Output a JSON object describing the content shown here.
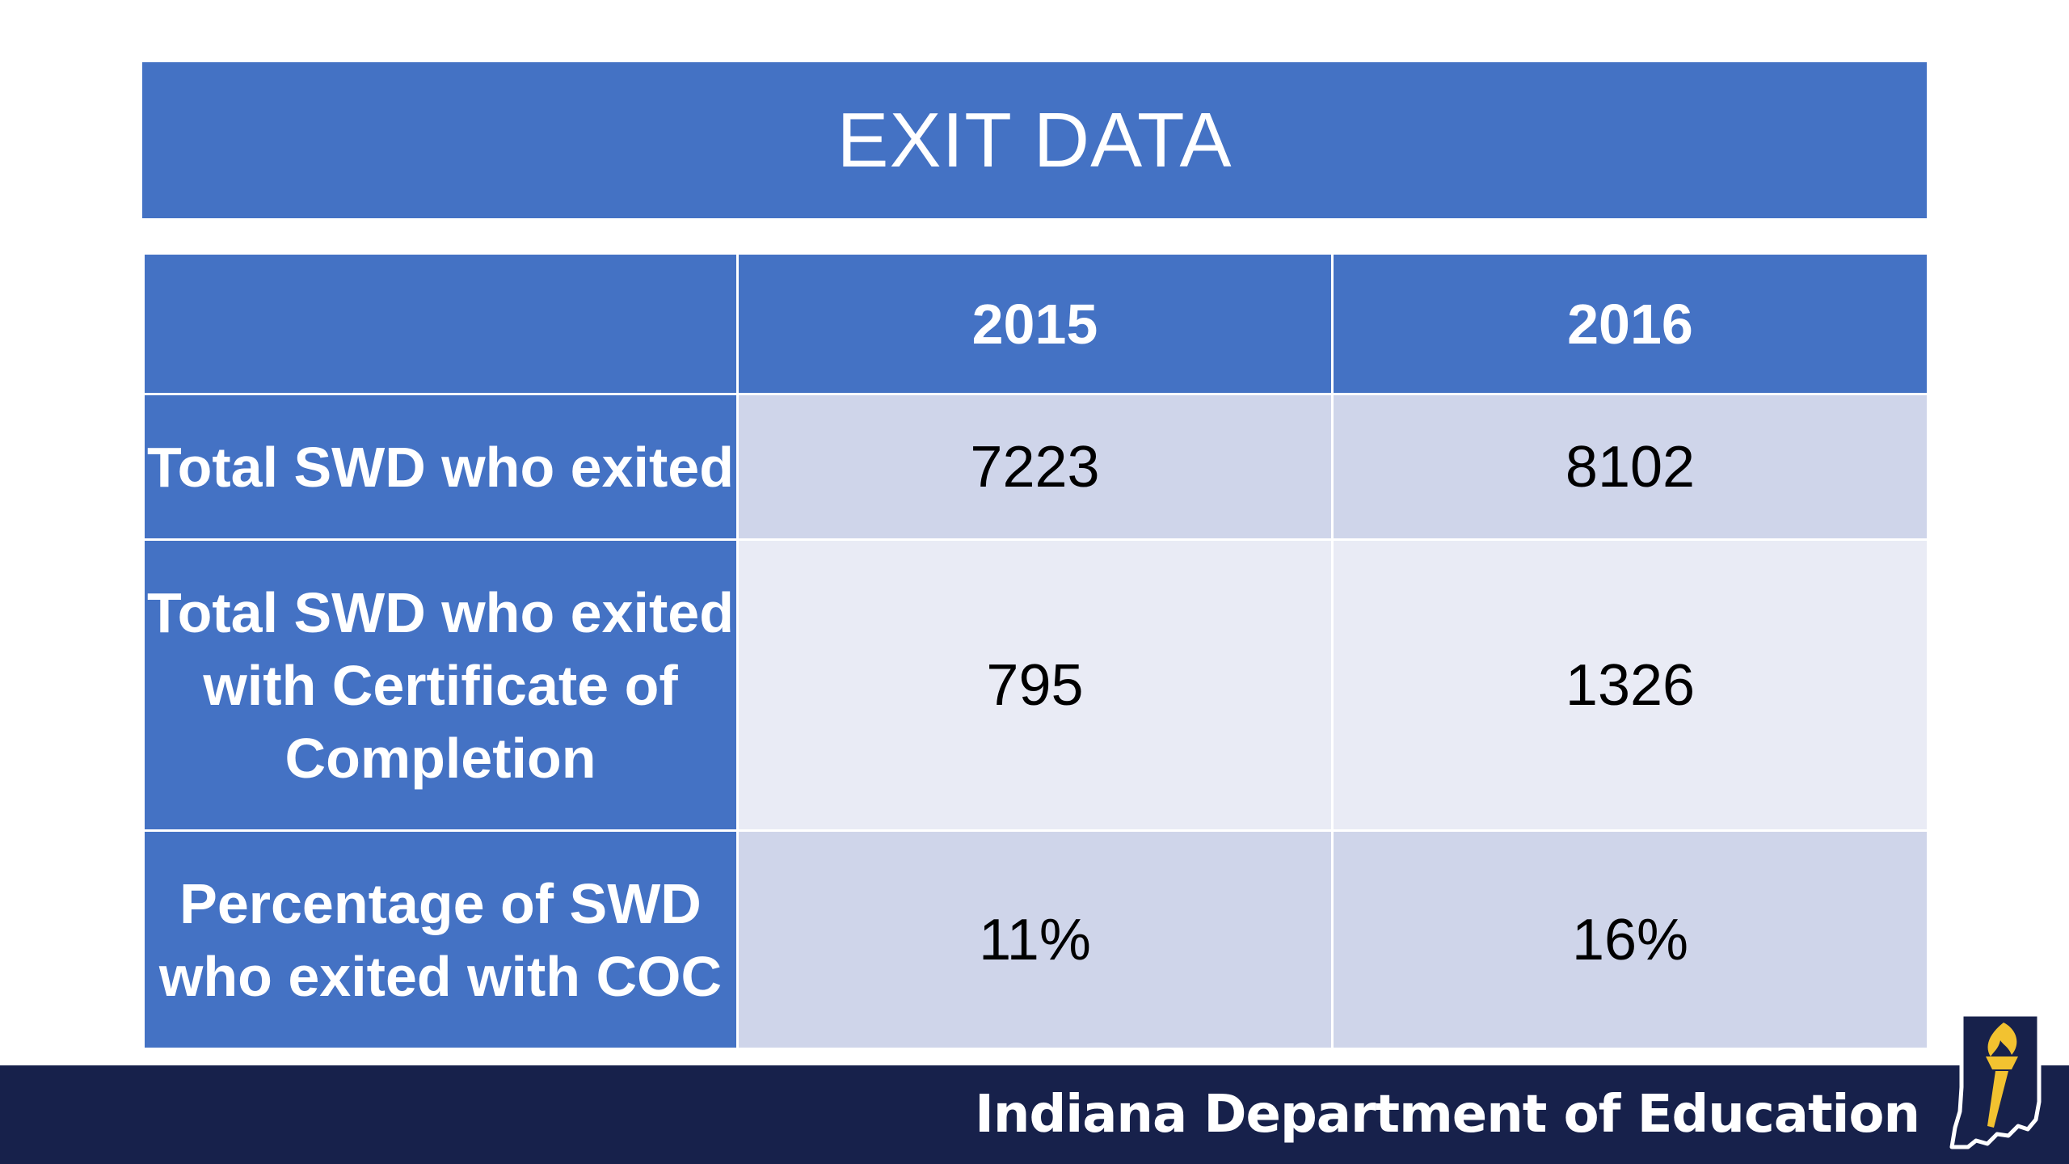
{
  "slide": {
    "title": "EXIT DATA"
  },
  "table": {
    "headers": [
      "",
      "2015",
      "2016"
    ],
    "rows": [
      {
        "label": "Total SWD who exited",
        "values": [
          "7223",
          "8102"
        ]
      },
      {
        "label": "Total SWD who exited with Certificate of Completion",
        "values": [
          "795",
          "1326"
        ]
      },
      {
        "label": "Percentage of SWD who exited with COC",
        "values": [
          "11%",
          "16%"
        ]
      }
    ]
  },
  "footer": {
    "organization": "Indiana Department of Education",
    "logo_icon": "indiana-torch-logo-icon"
  },
  "colors": {
    "header_blue": "#4472c4",
    "row_band_dark": "#cfd5ea",
    "row_band_light": "#e9ebf5",
    "footer_navy": "#17214b",
    "torch_gold": "#f2c230"
  }
}
